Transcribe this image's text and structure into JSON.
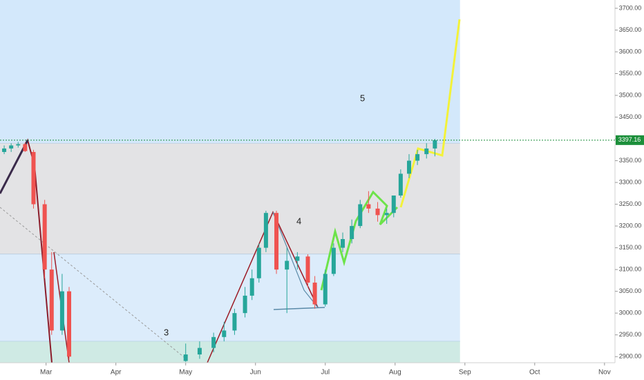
{
  "chart_data": {
    "type": "candlestick",
    "current_price": {
      "value": 3397.16,
      "label": "3397.16",
      "color": "#1b8f3a"
    },
    "annotations": [
      "3",
      "4",
      "5"
    ],
    "zones": [
      {
        "from": 3390,
        "to": 3719,
        "color": "#d3e8fb"
      },
      {
        "from": 3135,
        "to": 3390,
        "color": "#e3e3e5"
      },
      {
        "from": 2935,
        "to": 3135,
        "color": "#dcecfb"
      },
      {
        "from": 2886,
        "to": 2935,
        "color": "#cfeae4"
      }
    ],
    "up_color": "#26a69a",
    "down_color": "#ef5350",
    "x": [
      2.4,
      2.5,
      2.6,
      2.7,
      2.82,
      2.98,
      3.08,
      3.23,
      3.33,
      5.0,
      5.2,
      5.4,
      5.55,
      5.7,
      5.85,
      5.95,
      6.05,
      6.15,
      6.3,
      6.45,
      6.6,
      6.75,
      6.85,
      7.0,
      7.12,
      7.25,
      7.38,
      7.5,
      7.62,
      7.75,
      7.88,
      7.98,
      8.08,
      8.2,
      8.32,
      8.45,
      8.57
    ],
    "open": [
      3370,
      3378,
      3385,
      3388,
      3370,
      3250,
      3100,
      2960,
      3050,
      2890,
      2905,
      2920,
      2945,
      2960,
      3000,
      3040,
      3080,
      3150,
      3230,
      3100,
      3120,
      3130,
      3070,
      3020,
      3090,
      3150,
      3170,
      3200,
      3250,
      3240,
      3225,
      3230,
      3270,
      3320,
      3350,
      3365,
      3378
    ],
    "high": [
      3385,
      3390,
      3393,
      3392,
      3375,
      3260,
      3140,
      3090,
      3060,
      2930,
      2935,
      2955,
      2980,
      3010,
      3060,
      3100,
      3160,
      3235,
      3235,
      3150,
      3140,
      3135,
      3085,
      3100,
      3160,
      3185,
      3215,
      3260,
      3280,
      3255,
      3240,
      3270,
      3330,
      3365,
      3375,
      3390,
      3400
    ],
    "low": [
      3365,
      3370,
      3380,
      3370,
      3240,
      3080,
      2950,
      2950,
      2895,
      2888,
      2895,
      2910,
      2935,
      2950,
      2990,
      3030,
      3070,
      3140,
      3090,
      3000,
      3100,
      3060,
      3010,
      3015,
      3085,
      3140,
      3160,
      3195,
      3230,
      3210,
      3205,
      3220,
      3265,
      3310,
      3340,
      3355,
      3360
    ],
    "close": [
      3378,
      3385,
      3388,
      3372,
      3250,
      3100,
      2960,
      3050,
      2900,
      2905,
      2920,
      2945,
      2960,
      3000,
      3040,
      3080,
      3150,
      3230,
      3100,
      3120,
      3130,
      3070,
      3020,
      3090,
      3150,
      3170,
      3200,
      3250,
      3240,
      3225,
      3230,
      3270,
      3320,
      3350,
      3365,
      3378,
      3397
    ],
    "xlim": [
      2.34,
      11.15
    ],
    "xticks": [
      {
        "value": 3,
        "label": "Mar"
      },
      {
        "value": 4,
        "label": "Apr"
      },
      {
        "value": 5,
        "label": "May"
      },
      {
        "value": 6,
        "label": "Jun"
      },
      {
        "value": 7,
        "label": "Jul"
      },
      {
        "value": 8,
        "label": "Aug"
      },
      {
        "value": 9,
        "label": "Sep"
      },
      {
        "value": 10,
        "label": "Oct"
      },
      {
        "value": 11,
        "label": "Nov"
      }
    ],
    "ylim": [
      2886,
      3719
    ],
    "yticks": [
      {
        "value": 2900,
        "label": "2900.00"
      },
      {
        "value": 2950,
        "label": "2950.00"
      },
      {
        "value": 3000,
        "label": "3000.00"
      },
      {
        "value": 3050,
        "label": "3050.00"
      },
      {
        "value": 3100,
        "label": "3100.00"
      },
      {
        "value": 3150,
        "label": "3150.00"
      },
      {
        "value": 3200,
        "label": "3200.00"
      },
      {
        "value": 3250,
        "label": "3250.00"
      },
      {
        "value": 3300,
        "label": "3300.00"
      },
      {
        "value": 3350,
        "label": "3350.00"
      },
      {
        "value": 3400,
        "label": "3400.00"
      },
      {
        "value": 3450,
        "label": "3450.00"
      },
      {
        "value": 3500,
        "label": "3500.00"
      },
      {
        "value": 3550,
        "label": "3550.00"
      },
      {
        "value": 3600,
        "label": "3600.00"
      },
      {
        "value": 3650,
        "label": "3650.00"
      },
      {
        "value": 3700,
        "label": "3700.00"
      }
    ],
    "zone_end": 8.93
  }
}
